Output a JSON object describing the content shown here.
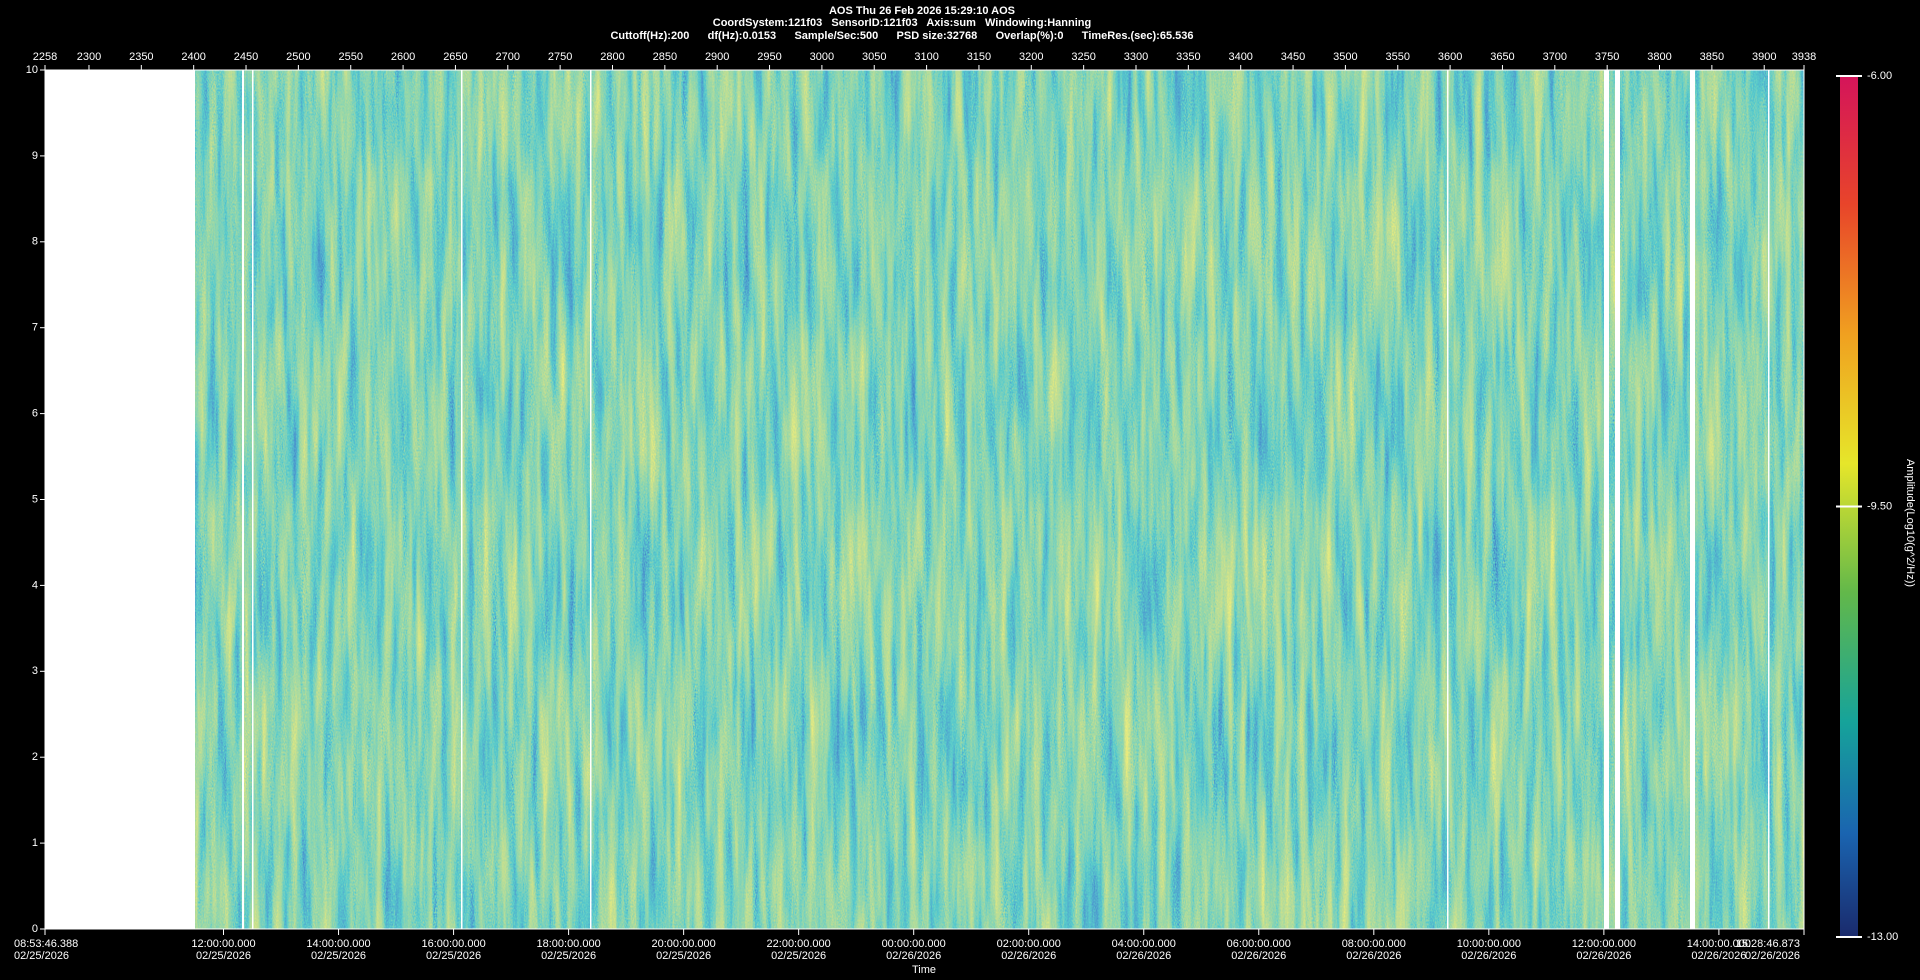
{
  "chart_data": {
    "type": "heatmap",
    "title": "AOS  Thu 26 Feb 2026 15:29:10  AOS",
    "subtitle": "CoordSystem:121f03   SensorID:121f03   Axis:sum   Windowing:Hanning",
    "info": "Cuttoff(Hz):200      df(Hz):0.0153      Sample/Sec:500      PSD size:32768      Overlap(%):0      TimeRes.(sec):65.536",
    "x_label": "Time",
    "xlim": [
      "2026-02-25T08:53:46.388",
      "2026-02-26T15:28:46.873"
    ],
    "xticks": [
      {
        "value": "2026-02-25T08:53:46.388",
        "label": "08:53:46.388",
        "date": "02/25/2026"
      },
      {
        "value": "2026-02-25T12:00:00.000",
        "label": "12:00:00.000",
        "date": "02/25/2026"
      },
      {
        "value": "2026-02-25T14:00:00.000",
        "label": "14:00:00.000",
        "date": "02/25/2026"
      },
      {
        "value": "2026-02-25T16:00:00.000",
        "label": "16:00:00.000",
        "date": "02/25/2026"
      },
      {
        "value": "2026-02-25T18:00:00.000",
        "label": "18:00:00.000",
        "date": "02/25/2026"
      },
      {
        "value": "2026-02-25T20:00:00.000",
        "label": "20:00:00.000",
        "date": "02/25/2026"
      },
      {
        "value": "2026-02-25T22:00:00.000",
        "label": "22:00:00.000",
        "date": "02/25/2026"
      },
      {
        "value": "2026-02-26T00:00:00.000",
        "label": "00:00:00.000",
        "date": "02/26/2026"
      },
      {
        "value": "2026-02-26T02:00:00.000",
        "label": "02:00:00.000",
        "date": "02/26/2026"
      },
      {
        "value": "2026-02-26T04:00:00.000",
        "label": "04:00:00.000",
        "date": "02/26/2026"
      },
      {
        "value": "2026-02-26T06:00:00.000",
        "label": "06:00:00.000",
        "date": "02/26/2026"
      },
      {
        "value": "2026-02-26T08:00:00.000",
        "label": "08:00:00.000",
        "date": "02/26/2026"
      },
      {
        "value": "2026-02-26T10:00:00.000",
        "label": "10:00:00.000",
        "date": "02/26/2026"
      },
      {
        "value": "2026-02-26T12:00:00.000",
        "label": "12:00:00.000",
        "date": "02/26/2026"
      },
      {
        "value": "2026-02-26T14:00:00.000",
        "label": "14:00:00.000",
        "date": "02/26/2026"
      },
      {
        "value": "2026-02-26T15:28:46.873",
        "label": "15:28:46.873",
        "date": "02/26/2026"
      }
    ],
    "x2lim": [
      2258,
      3938
    ],
    "x2ticks": [
      2258,
      2300,
      2350,
      2400,
      2450,
      2500,
      2550,
      2600,
      2650,
      2700,
      2750,
      2800,
      2850,
      2900,
      2950,
      3000,
      3050,
      3100,
      3150,
      3200,
      3250,
      3300,
      3350,
      3400,
      3450,
      3500,
      3550,
      3600,
      3650,
      3700,
      3750,
      3800,
      3850,
      3900,
      3938
    ],
    "ylim": [
      0,
      10
    ],
    "yticks": [
      0,
      1,
      2,
      3,
      4,
      5,
      6,
      7,
      8,
      9,
      10
    ],
    "colorbar": {
      "label": "Amplitude(Log10(g^2/Hz))",
      "lim": [
        -13,
        -6
      ],
      "ticks": [
        {
          "value": -6,
          "label": "-6.00"
        },
        {
          "value": -9.5,
          "label": "-9.50"
        },
        {
          "value": -13,
          "label": "-13.00"
        }
      ]
    }
  }
}
